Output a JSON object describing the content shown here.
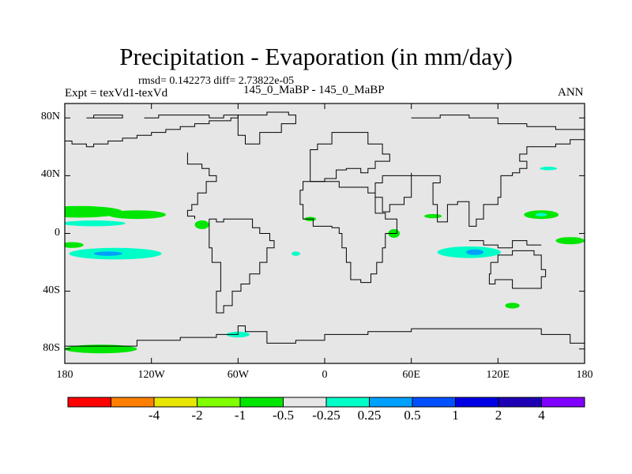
{
  "header": {
    "title": "Precipitation - Evaporation (in mm/day)",
    "stats": "rmsd= 0.142273 diff= 2.73822e-05",
    "expt": "Expt = texVd1-texVd",
    "cases": "145_0_MaBP - 145_0_MaBP",
    "season": "ANN"
  },
  "chart_data": {
    "type": "heatmap",
    "title": "Precipitation - Evaporation (in mm/day)",
    "xlabel": "",
    "ylabel": "",
    "xlim": [
      -180,
      180
    ],
    "ylim": [
      -90,
      90
    ],
    "x_ticks": [
      {
        "value": -180,
        "label": "180"
      },
      {
        "value": -120,
        "label": "120W"
      },
      {
        "value": -60,
        "label": "60W"
      },
      {
        "value": 0,
        "label": "0"
      },
      {
        "value": 60,
        "label": "60E"
      },
      {
        "value": 120,
        "label": "120E"
      },
      {
        "value": 180,
        "label": "180"
      }
    ],
    "y_ticks": [
      {
        "value": 80,
        "label": "80N"
      },
      {
        "value": 40,
        "label": "40N"
      },
      {
        "value": 0,
        "label": "0"
      },
      {
        "value": -40,
        "label": "40S"
      },
      {
        "value": -80,
        "label": "80S"
      }
    ],
    "background_color": "#e6e6e6",
    "colorbar": {
      "colors": [
        "#ff0000",
        "#ff8000",
        "#e6e600",
        "#80ff00",
        "#00e600",
        "#e6e6e6",
        "#00ffc8",
        "#00a0ff",
        "#0050ff",
        "#0000e6",
        "#1e00b4",
        "#8000ff"
      ],
      "labels": [
        {
          "boundary": 2,
          "text": "-4"
        },
        {
          "boundary": 3,
          "text": "-2"
        },
        {
          "boundary": 4,
          "text": "-1"
        },
        {
          "boundary": 5,
          "text": "-0.5"
        },
        {
          "boundary": 6,
          "text": "-0.25"
        },
        {
          "boundary": 7,
          "text": "0.25"
        },
        {
          "boundary": 8,
          "text": "0.5"
        },
        {
          "boundary": 9,
          "text": "1"
        },
        {
          "boundary": 10,
          "text": "2"
        },
        {
          "boundary": 11,
          "text": "4"
        }
      ]
    },
    "anomaly_regions": [
      {
        "name": "n-pacific-band",
        "lon": -170,
        "lat": 15,
        "rlon": 30,
        "rlat": 4,
        "range": "-0.5 to -0.25",
        "color": "#00e600"
      },
      {
        "name": "n-pacific-band-east",
        "lon": -130,
        "lat": 13,
        "rlon": 20,
        "rlat": 3,
        "range": "-0.5 to -0.25",
        "color": "#00e600"
      },
      {
        "name": "eq-pacific-west",
        "lon": -160,
        "lat": 7,
        "rlon": 22,
        "rlat": 2,
        "range": "0.25 to 0.5",
        "color": "#00ffc8"
      },
      {
        "name": "s-pacific-band",
        "lon": -145,
        "lat": -14,
        "rlon": 32,
        "rlat": 4,
        "range": "0.25 to 0.5",
        "color": "#00ffc8"
      },
      {
        "name": "s-pacific-core",
        "lon": -150,
        "lat": -14,
        "rlon": 10,
        "rlat": 1.5,
        "range": "0.5 to 1",
        "color": "#00a0ff"
      },
      {
        "name": "s-pacific-edge",
        "lon": -175,
        "lat": -8,
        "rlon": 8,
        "rlat": 2,
        "range": "-0.5 to -0.25",
        "color": "#00e600"
      },
      {
        "name": "panama",
        "lon": -85,
        "lat": 6,
        "rlon": 5,
        "rlat": 3,
        "range": "-0.5 to -0.25",
        "color": "#00e600"
      },
      {
        "name": "indian-ocean",
        "lon": 100,
        "lat": -13,
        "rlon": 22,
        "rlat": 4,
        "range": "0.25 to 0.5",
        "color": "#00ffc8"
      },
      {
        "name": "indian-ocean-core",
        "lon": 104,
        "lat": -13,
        "rlon": 6,
        "rlat": 2,
        "range": "0.5 to 1",
        "color": "#00a0ff"
      },
      {
        "name": "w-pacific",
        "lon": 150,
        "lat": 13,
        "rlon": 12,
        "rlat": 3,
        "range": "-0.5 to -0.25",
        "color": "#00e600"
      },
      {
        "name": "w-pacific-core",
        "lon": 150,
        "lat": 13,
        "rlon": 4,
        "rlat": 1.2,
        "range": "0.25 to 0.5",
        "color": "#00ffc8"
      },
      {
        "name": "tasman",
        "lon": 170,
        "lat": -5,
        "rlon": 10,
        "rlat": 2.5,
        "range": "-0.5 to -0.25",
        "color": "#00e600"
      },
      {
        "name": "s-atlantic",
        "lon": -60,
        "lat": -70,
        "rlon": 8,
        "rlat": 2,
        "range": "0.25 to 0.5",
        "color": "#00ffc8"
      },
      {
        "name": "antarctic-pacific",
        "lon": -155,
        "lat": -80,
        "rlon": 25,
        "rlat": 3,
        "range": "-0.5 to -0.25",
        "color": "#00e600"
      },
      {
        "name": "s-indian",
        "lon": 130,
        "lat": -50,
        "rlon": 5,
        "rlat": 2,
        "range": "-0.5 to -0.25",
        "color": "#00e600"
      },
      {
        "name": "arabian-sea",
        "lon": 48,
        "lat": 0,
        "rlon": 4,
        "rlat": 3,
        "range": "-0.5 to -0.25",
        "color": "#00e600"
      },
      {
        "name": "caribbean",
        "lon": -10,
        "lat": 10,
        "rlon": 4,
        "rlat": 1.5,
        "range": "-0.5 to -0.25",
        "color": "#00e600"
      },
      {
        "name": "africa-west",
        "lon": -20,
        "lat": -14,
        "rlon": 3,
        "rlat": 1.5,
        "range": "0.25 to 0.5",
        "color": "#00ffc8"
      },
      {
        "name": "n-pacific-east",
        "lon": 155,
        "lat": 45,
        "rlon": 6,
        "rlat": 1.2,
        "range": "0.25 to 0.5",
        "color": "#00ffc8"
      },
      {
        "name": "indian-n",
        "lon": 75,
        "lat": 12,
        "rlon": 6,
        "rlat": 1.5,
        "range": "-0.5 to -0.25",
        "color": "#00e600"
      }
    ],
    "coastlines": [
      [
        [
          -160,
          82
        ],
        [
          -140,
          82
        ],
        [
          -140,
          80
        ],
        [
          -165,
          80
        ],
        [
          -160,
          82
        ]
      ],
      [
        [
          -125,
          80
        ],
        [
          -120,
          80
        ],
        [
          -115,
          82
        ],
        [
          -90,
          82
        ],
        [
          -80,
          80
        ],
        [
          -70,
          82
        ],
        [
          -60,
          80
        ],
        [
          -65,
          78
        ],
        [
          -80,
          76
        ],
        [
          -90,
          74
        ],
        [
          -100,
          72
        ],
        [
          -110,
          70
        ],
        [
          -120,
          68
        ],
        [
          -130,
          66
        ],
        [
          -140,
          64
        ],
        [
          -150,
          62
        ],
        [
          -160,
          60
        ],
        [
          -165,
          62
        ],
        [
          -175,
          64
        ],
        [
          -180,
          66
        ]
      ],
      [
        [
          -95,
          56
        ],
        [
          -95,
          48
        ],
        [
          -85,
          45
        ],
        [
          -80,
          40
        ],
        [
          -75,
          36
        ],
        [
          -82,
          28
        ],
        [
          -88,
          20
        ],
        [
          -92,
          16
        ],
        [
          -95,
          12
        ],
        [
          -90,
          10
        ]
      ],
      [
        [
          -80,
          10
        ],
        [
          -75,
          8
        ],
        [
          -70,
          10
        ],
        [
          -62,
          10
        ],
        [
          -50,
          4
        ],
        [
          -45,
          0
        ],
        [
          -38,
          -5
        ],
        [
          -35,
          -10
        ],
        [
          -40,
          -20
        ],
        [
          -45,
          -28
        ],
        [
          -52,
          -35
        ],
        [
          -58,
          -40
        ],
        [
          -64,
          -50
        ],
        [
          -70,
          -55
        ],
        [
          -75,
          -50
        ],
        [
          -75,
          -40
        ],
        [
          -72,
          -30
        ],
        [
          -72,
          -20
        ],
        [
          -78,
          -10
        ],
        [
          -80,
          -2
        ],
        [
          -80,
          5
        ],
        [
          -80,
          10
        ]
      ],
      [
        [
          -60,
          82
        ],
        [
          -40,
          84
        ],
        [
          -25,
          82
        ],
        [
          -20,
          76
        ],
        [
          -30,
          70
        ],
        [
          -45,
          62
        ],
        [
          -55,
          68
        ],
        [
          -60,
          76
        ],
        [
          -60,
          82
        ]
      ],
      [
        [
          -10,
          36
        ],
        [
          0,
          38
        ],
        [
          8,
          44
        ],
        [
          15,
          45
        ],
        [
          25,
          42
        ],
        [
          30,
          45
        ],
        [
          35,
          50
        ],
        [
          45,
          55
        ],
        [
          40,
          62
        ],
        [
          30,
          70
        ],
        [
          15,
          70
        ],
        [
          5,
          62
        ],
        [
          -5,
          58
        ],
        [
          -10,
          50
        ],
        [
          -10,
          36
        ]
      ],
      [
        [
          -15,
          30
        ],
        [
          -17,
          20
        ],
        [
          -15,
          10
        ],
        [
          -8,
          5
        ],
        [
          5,
          4
        ],
        [
          10,
          0
        ],
        [
          12,
          -10
        ],
        [
          15,
          -20
        ],
        [
          18,
          -32
        ],
        [
          25,
          -34
        ],
        [
          32,
          -28
        ],
        [
          36,
          -20
        ],
        [
          40,
          -10
        ],
        [
          42,
          0
        ],
        [
          50,
          10
        ],
        [
          42,
          14
        ],
        [
          35,
          28
        ],
        [
          30,
          32
        ],
        [
          10,
          36
        ],
        [
          -5,
          36
        ],
        [
          -15,
          30
        ]
      ],
      [
        [
          40,
          40
        ],
        [
          60,
          42
        ],
        [
          60,
          25
        ],
        [
          55,
          20
        ],
        [
          45,
          15
        ],
        [
          40,
          25
        ],
        [
          35,
          35
        ],
        [
          40,
          40
        ]
      ],
      [
        [
          60,
          40
        ],
        [
          80,
          35
        ],
        [
          75,
          20
        ],
        [
          78,
          8
        ],
        [
          85,
          20
        ],
        [
          92,
          22
        ],
        [
          100,
          15
        ],
        [
          100,
          5
        ],
        [
          105,
          10
        ],
        [
          110,
          20
        ],
        [
          120,
          25
        ],
        [
          122,
          30
        ],
        [
          122,
          40
        ],
        [
          130,
          42
        ],
        [
          135,
          45
        ],
        [
          140,
          50
        ],
        [
          135,
          55
        ],
        [
          140,
          60
        ],
        [
          160,
          62
        ],
        [
          170,
          65
        ],
        [
          180,
          68
        ]
      ],
      [
        [
          60,
          80
        ],
        [
          80,
          82
        ],
        [
          100,
          80
        ],
        [
          120,
          76
        ],
        [
          140,
          74
        ],
        [
          160,
          72
        ],
        [
          180,
          72
        ]
      ],
      [
        [
          100,
          -5
        ],
        [
          110,
          -8
        ],
        [
          120,
          -10
        ],
        [
          130,
          -5
        ],
        [
          140,
          -8
        ],
        [
          150,
          -8
        ]
      ],
      [
        [
          115,
          -20
        ],
        [
          120,
          -15
        ],
        [
          130,
          -12
        ],
        [
          140,
          -12
        ],
        [
          145,
          -15
        ],
        [
          150,
          -25
        ],
        [
          153,
          -30
        ],
        [
          150,
          -38
        ],
        [
          140,
          -38
        ],
        [
          130,
          -32
        ],
        [
          118,
          -35
        ],
        [
          114,
          -28
        ],
        [
          115,
          -20
        ]
      ],
      [
        [
          -180,
          -78
        ],
        [
          -150,
          -78
        ],
        [
          -130,
          -74
        ],
        [
          -100,
          -72
        ],
        [
          -75,
          -70
        ],
        [
          -60,
          -64
        ],
        [
          -55,
          -68
        ],
        [
          -40,
          -76
        ],
        [
          -20,
          -74
        ],
        [
          0,
          -70
        ],
        [
          30,
          -68
        ],
        [
          60,
          -66
        ],
        [
          90,
          -66
        ],
        [
          120,
          -66
        ],
        [
          150,
          -70
        ],
        [
          170,
          -76
        ],
        [
          180,
          -78
        ]
      ]
    ]
  }
}
